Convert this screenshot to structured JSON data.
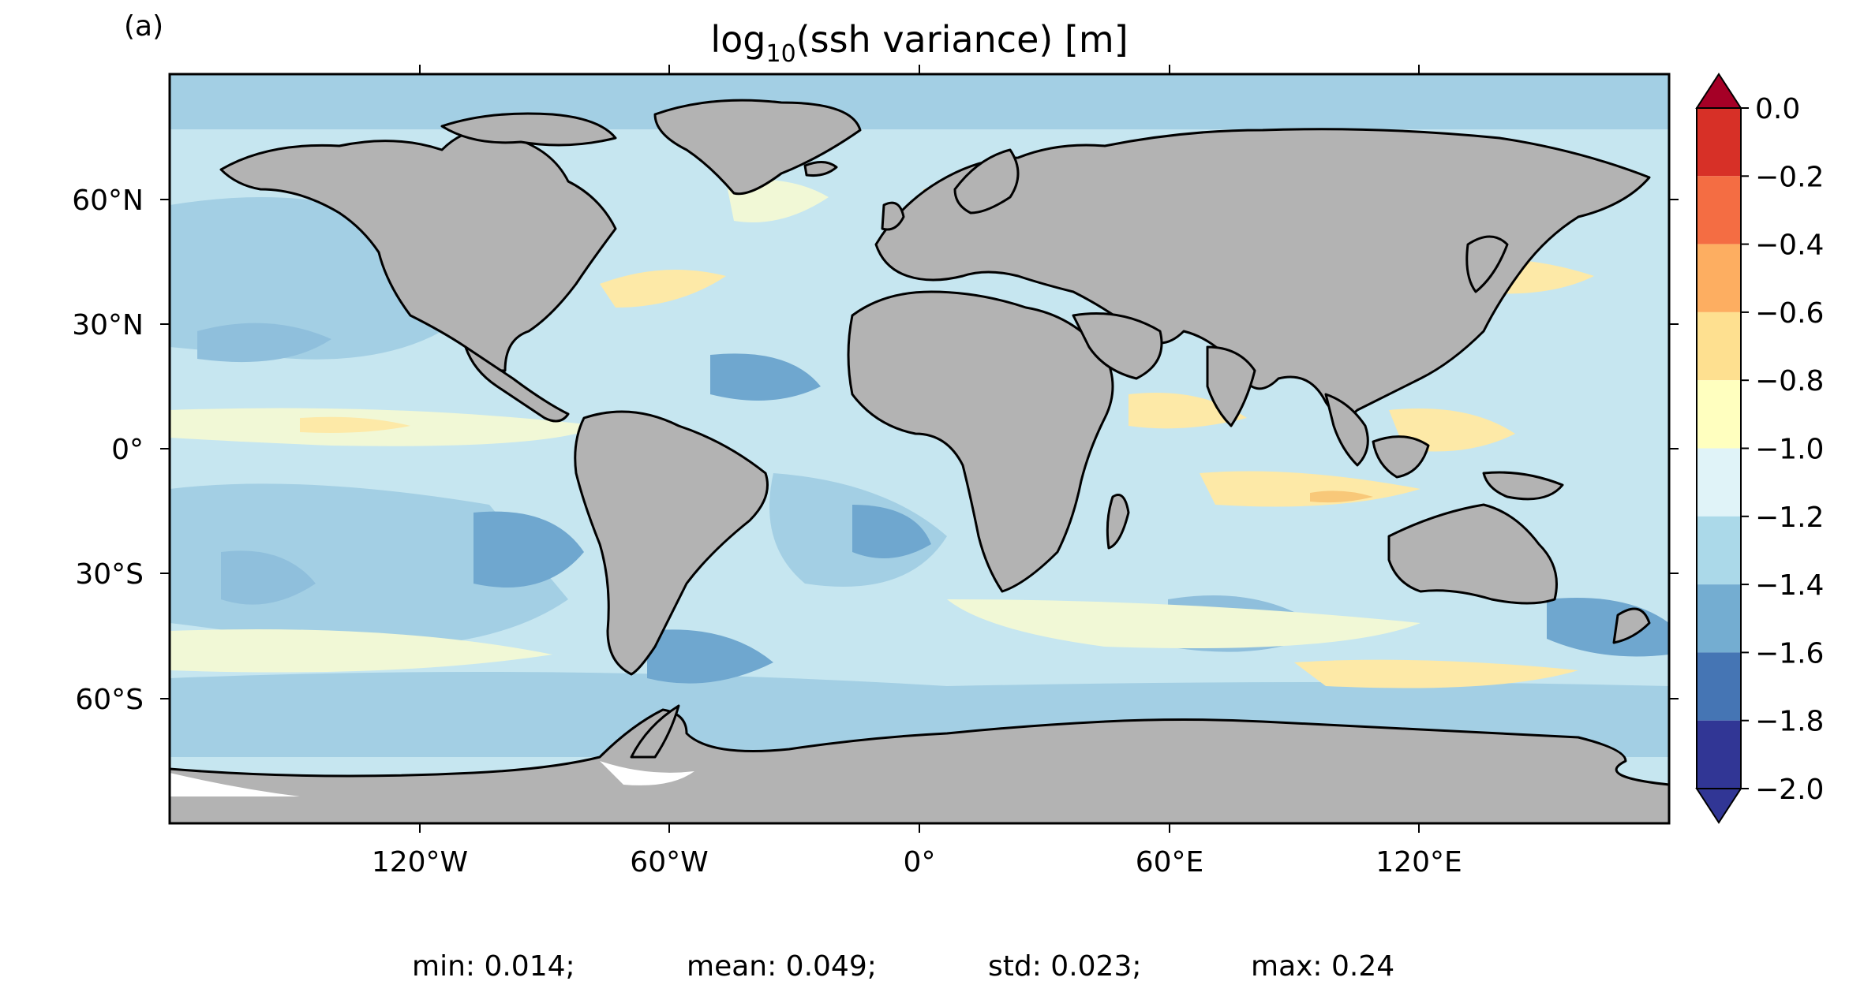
{
  "panel_label": "(a)",
  "title": {
    "prefix": "log",
    "subscript": "10",
    "suffix": "(ssh variance) [m]"
  },
  "map": {
    "projection": "PlateCarree",
    "ocean_color_field": "log10 ssh variance",
    "land_color": "#b3b3b3",
    "coastline_color": "#000000",
    "lat_ticks": [
      "60°N",
      "30°N",
      "0°",
      "30°S",
      "60°S"
    ],
    "lon_ticks": [
      "120°W",
      "60°W",
      "0°",
      "60°E",
      "120°E"
    ]
  },
  "colorbar": {
    "tick_labels": [
      "0.0",
      "−0.2",
      "−0.4",
      "−0.6",
      "−0.8",
      "−1.0",
      "−1.2",
      "−1.4",
      "−1.6",
      "−1.8",
      "−2.0"
    ],
    "levels": [
      0.0,
      -0.2,
      -0.4,
      -0.6,
      -0.8,
      -1.0,
      -1.2,
      -1.4,
      -1.6,
      -1.8,
      -2.0
    ],
    "extend": "both",
    "colors": {
      "over": "#a50026",
      "bands_top_to_bottom": [
        "#d73027",
        "#f46d43",
        "#fdae61",
        "#fee090",
        "#ffffbf",
        "#e0f3f8",
        "#abd9e9",
        "#74add1",
        "#4575b4",
        "#313695"
      ],
      "under": "#313695"
    }
  },
  "stats": {
    "min": "min: 0.014;",
    "mean": "mean: 0.049;",
    "std": "std: 0.023;",
    "max": "max: 0.24"
  }
}
